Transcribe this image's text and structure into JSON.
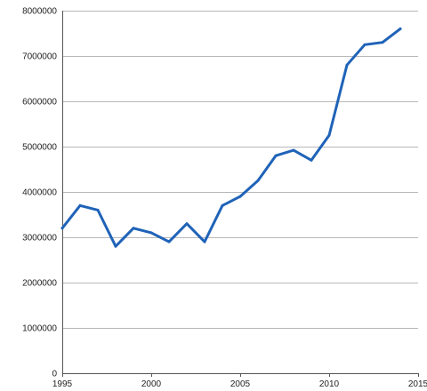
{
  "chart_data": {
    "type": "line",
    "title": "",
    "xlabel": "",
    "ylabel": "",
    "xlim": [
      1995,
      2015
    ],
    "ylim": [
      0,
      8000000
    ],
    "x_ticks": [
      1995,
      2000,
      2005,
      2010,
      2015
    ],
    "y_ticks": [
      0,
      1000000,
      2000000,
      3000000,
      4000000,
      5000000,
      6000000,
      7000000,
      8000000
    ],
    "x_tick_labels": [
      "1995",
      "2000",
      "2005",
      "2010",
      "2015"
    ],
    "y_tick_labels": [
      "0",
      "1000000",
      "2000000",
      "3000000",
      "4000000",
      "5000000",
      "6000000",
      "7000000",
      "8000000"
    ],
    "grid": "horizontal",
    "legend": "none",
    "line_color": "#1f63b8",
    "series": [
      {
        "x": [
          1995,
          1996,
          1997,
          1998,
          1999,
          2000,
          2001,
          2002,
          2003,
          2004,
          2005,
          2006,
          2007,
          2008,
          2009,
          2010,
          2011,
          2012,
          2013,
          2014
        ],
        "values": [
          3200000,
          3700000,
          3600000,
          2800000,
          3200000,
          3100000,
          2900000,
          3300000,
          2900000,
          3700000,
          3900000,
          4250000,
          4800000,
          4920000,
          4700000,
          5250000,
          6800000,
          7250000,
          7300000,
          7600000
        ]
      }
    ]
  }
}
